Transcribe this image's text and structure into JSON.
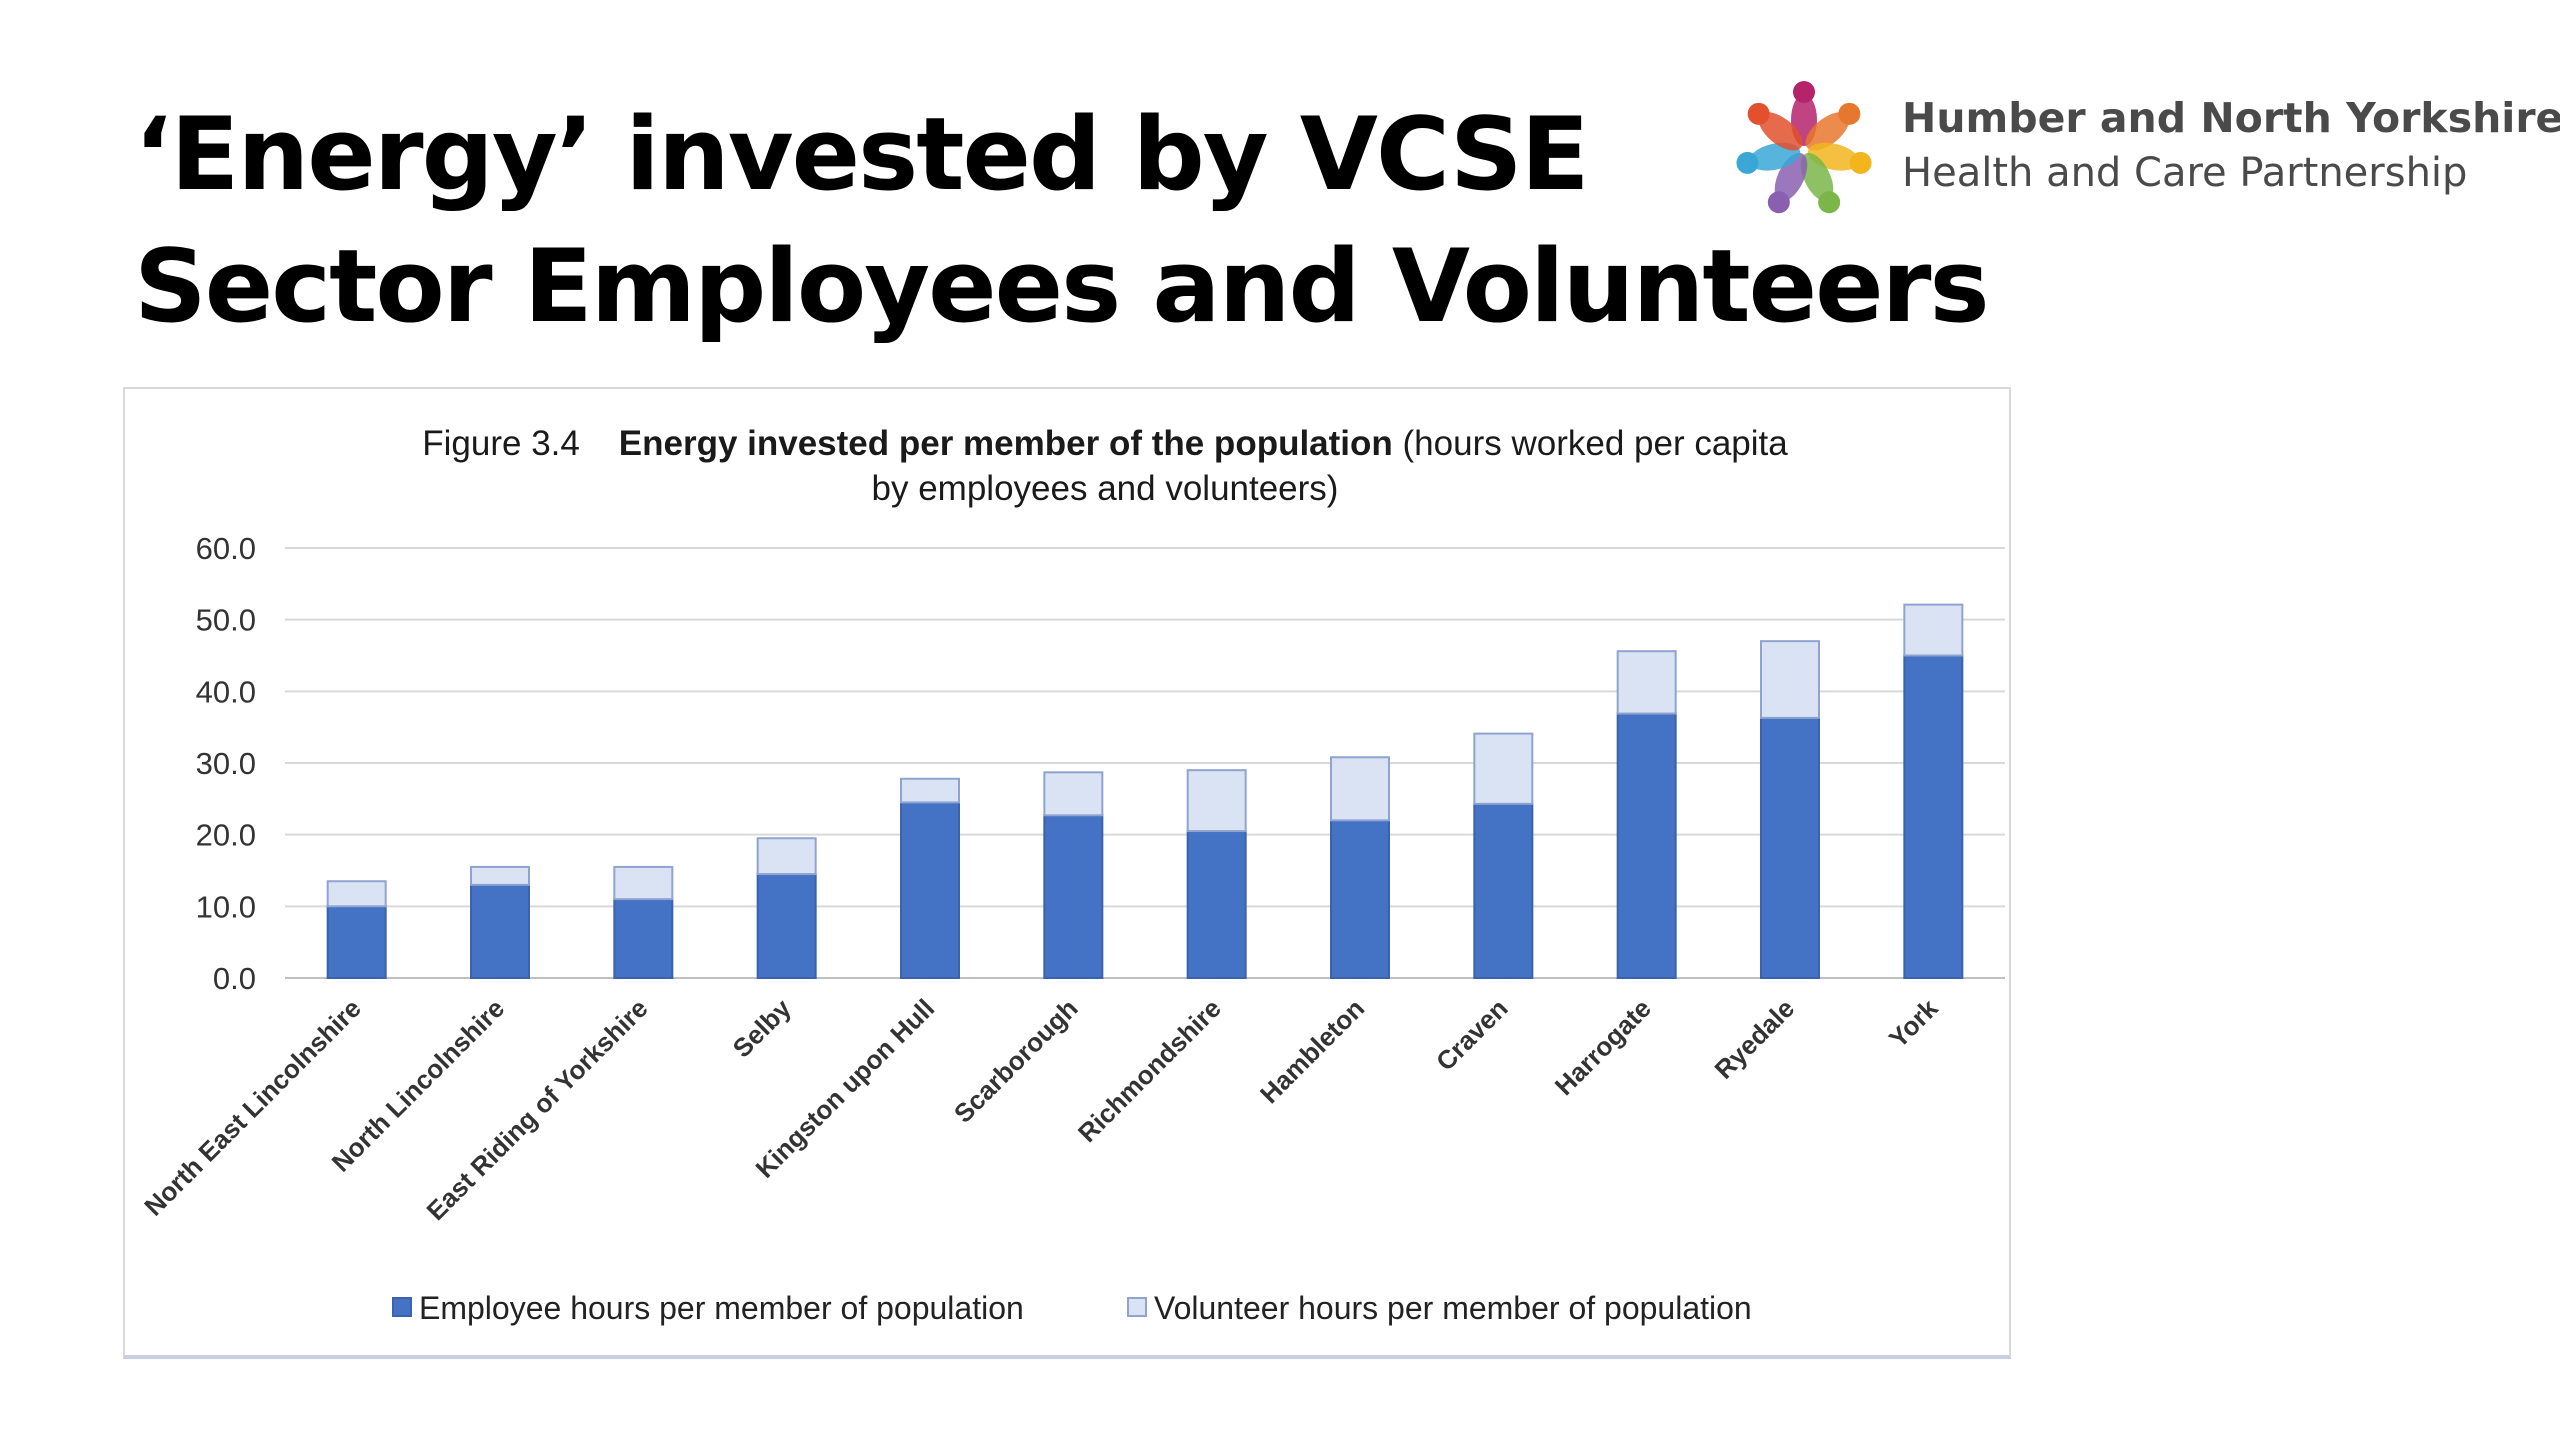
{
  "slide": {
    "title_line1": "‘Energy’ invested by VCSE",
    "title_line2": "Sector Employees and Volunteers"
  },
  "logo": {
    "line1": "Humber and North Yorkshire",
    "line2": "Health and Care Partnership",
    "dot_colors": [
      "#b5236b",
      "#e8772e",
      "#f2b51d",
      "#7ab648",
      "#8a5fb0",
      "#3aa7d6",
      "#e2502d"
    ]
  },
  "chart_data": {
    "type": "bar",
    "stacked": true,
    "figure_label": "Figure 3.4",
    "title": "Energy invested per member of the population",
    "subtitle_part1": "(hours worked per capita",
    "subtitle_part2": "by employees and volunteers)",
    "categories": [
      "North East Lincolnshire",
      "North Lincolnshire",
      "East Riding of Yorkshire",
      "Selby",
      "Kingston upon Hull",
      "Scarborough",
      "Richmondshire",
      "Hambleton",
      "Craven",
      "Harrogate",
      "Ryedale",
      "York"
    ],
    "series": [
      {
        "name": "Employee hours per member of population",
        "color": "#4472c4",
        "values": [
          10.0,
          13.0,
          11.0,
          14.5,
          24.5,
          22.7,
          20.5,
          22.0,
          24.3,
          36.9,
          36.3,
          45.0
        ]
      },
      {
        "name": "Volunteer hours per member of population",
        "color": "#dae3f3",
        "values": [
          3.5,
          2.5,
          4.5,
          5.0,
          3.3,
          6.0,
          8.5,
          8.8,
          9.8,
          8.7,
          10.7,
          7.1
        ]
      }
    ],
    "ylim": [
      0,
      60
    ],
    "yticks": [
      "60.0",
      "50.0",
      "40.0",
      "30.0",
      "20.0",
      "10.0",
      "0.0"
    ],
    "grid": true,
    "legend_position": "bottom"
  }
}
